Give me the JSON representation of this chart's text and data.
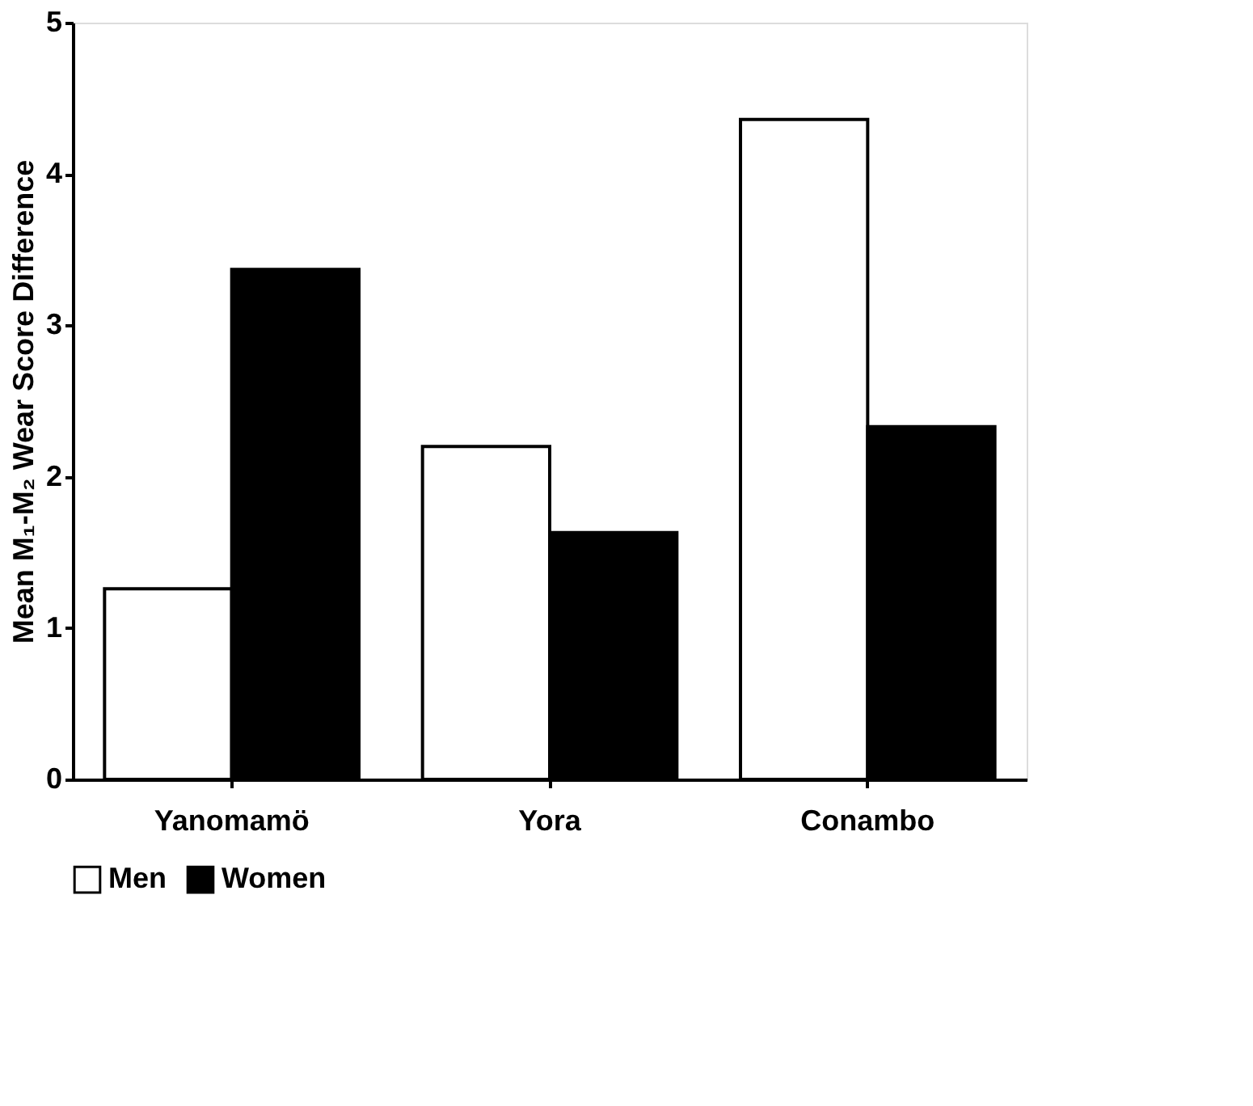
{
  "chart_data": {
    "type": "bar",
    "ylabel": "Mean M₁-M₂ Wear Score Difference",
    "categories": [
      "Yanomamö",
      "Yora",
      "Conambo"
    ],
    "series": [
      {
        "name": "Men",
        "color": "#ffffff",
        "values": [
          1.26,
          2.2,
          4.36
        ]
      },
      {
        "name": "Women",
        "color": "#000000",
        "values": [
          3.37,
          1.63,
          2.33
        ]
      }
    ],
    "ylim": [
      0,
      5
    ],
    "yticks": [
      0,
      1,
      2,
      3,
      4,
      5
    ],
    "grid": false,
    "legend": "bottom"
  }
}
